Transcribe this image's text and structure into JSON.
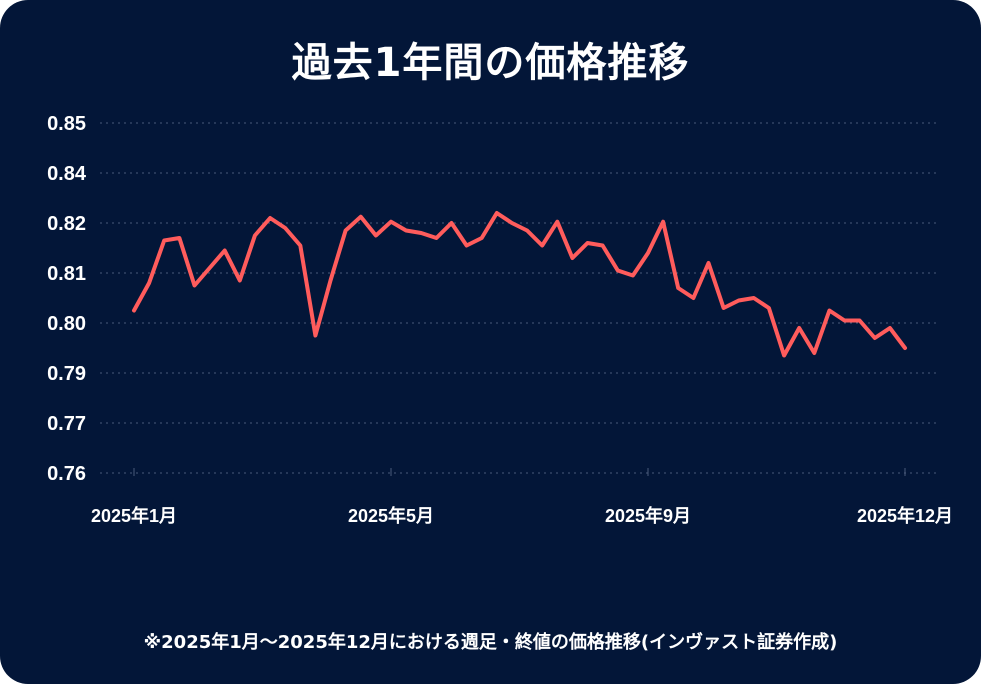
{
  "title": "過去1年間の価格推移",
  "note": "※2025年1月～2025年12月における週足・終値の価格推移(インヴァスト証券作成)",
  "colors": {
    "background": "#031638",
    "line": "#ff5c5c",
    "grid": "#4a5a7a",
    "text": "#ffffff"
  },
  "chart_data": {
    "type": "line",
    "title": "過去1年間の価格推移",
    "xlabel": "",
    "ylabel": "",
    "grid": true,
    "y_ticks": [
      0.85,
      0.84,
      0.82,
      0.81,
      0.8,
      0.79,
      0.77,
      0.76
    ],
    "y_tick_labels": [
      "0.85",
      "0.84",
      "0.82",
      "0.81",
      "0.80",
      "0.79",
      "0.77",
      "0.76"
    ],
    "x_tick_labels": [
      {
        "label": "2025年1月",
        "index": 0
      },
      {
        "label": "2025年5月",
        "index": 17
      },
      {
        "label": "2025年9月",
        "index": 34
      },
      {
        "label": "2025年12月",
        "index": 51
      }
    ],
    "series": [
      {
        "values": [
          0.8025,
          0.808,
          0.8165,
          0.817,
          0.8075,
          0.811,
          0.8145,
          0.8085,
          0.8175,
          0.822,
          0.819,
          0.8155,
          0.7975,
          0.8085,
          0.8185,
          0.8225,
          0.8175,
          0.8205,
          0.8185,
          0.818,
          0.817,
          0.82,
          0.8155,
          0.817,
          0.824,
          0.82,
          0.8185,
          0.8155,
          0.8205,
          0.813,
          0.816,
          0.8155,
          0.8105,
          0.8095,
          0.814,
          0.8205,
          0.807,
          0.805,
          0.812,
          0.803,
          0.8045,
          0.805,
          0.803,
          0.7935,
          0.799,
          0.794,
          0.8025,
          0.8005,
          0.8005,
          0.797,
          0.799,
          0.795
        ]
      }
    ]
  }
}
